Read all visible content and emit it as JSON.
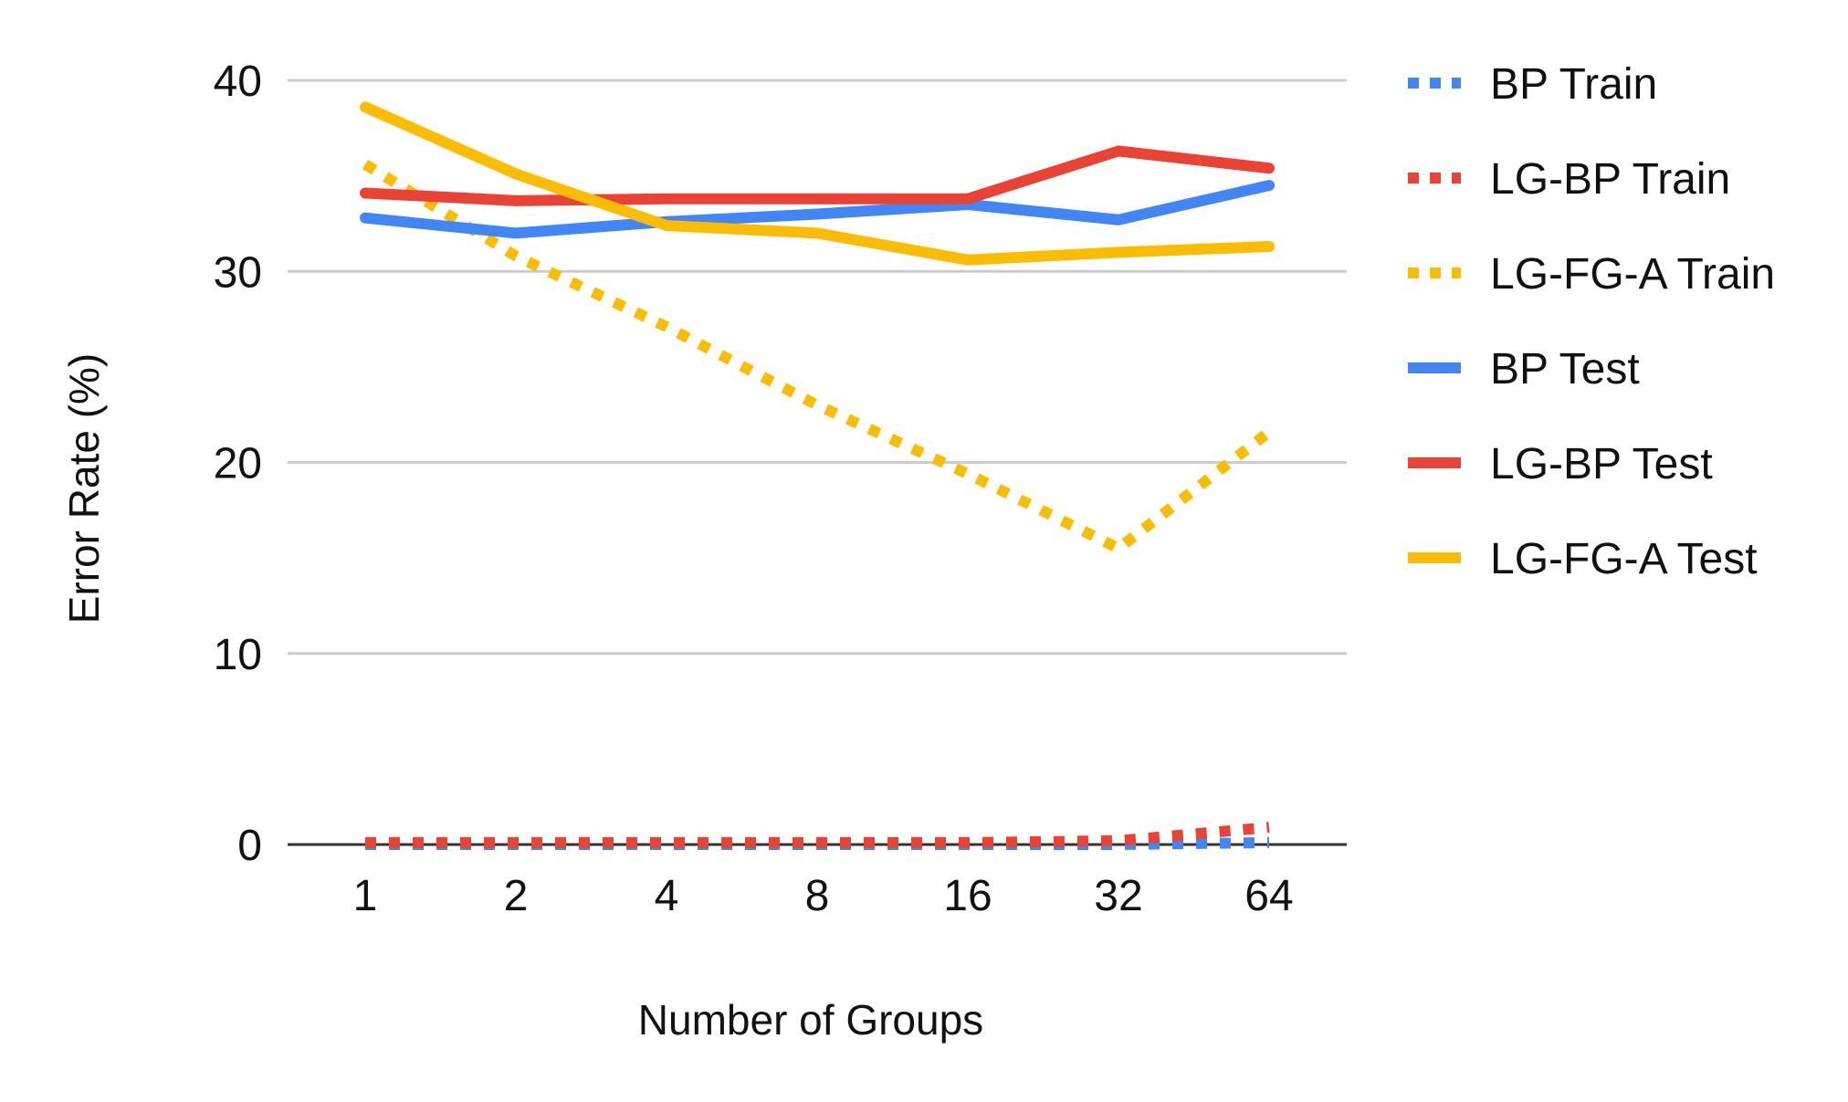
{
  "chart_data": {
    "type": "line",
    "title": "",
    "xlabel": "Number of Groups",
    "ylabel": "Error Rate (%)",
    "categories": [
      "1",
      "2",
      "4",
      "8",
      "16",
      "32",
      "64"
    ],
    "ylim": [
      0,
      40
    ],
    "yticks": [
      "0",
      "10",
      "20",
      "30",
      "40"
    ],
    "grid": "horizontal",
    "legend_position": "right",
    "series": [
      {
        "name": "BP Train",
        "style": "dotted",
        "color": "#4285F4",
        "values": [
          0,
          0,
          0,
          0,
          0,
          0,
          0.1
        ]
      },
      {
        "name": "LG-BP Train",
        "style": "dotted",
        "color": "#EA4335",
        "values": [
          0.1,
          0.1,
          0.1,
          0.1,
          0.1,
          0.2,
          0.9
        ]
      },
      {
        "name": "LG-FG-A Train",
        "style": "dotted",
        "color": "#FBBC04",
        "values": [
          35.6,
          30.8,
          27.1,
          23.0,
          19.4,
          15.5,
          21.6
        ]
      },
      {
        "name": "BP Test",
        "style": "solid",
        "color": "#4285F4",
        "values": [
          32.8,
          32.0,
          32.6,
          33.0,
          33.5,
          32.7,
          34.5
        ]
      },
      {
        "name": "LG-BP Test",
        "style": "solid",
        "color": "#EA4335",
        "values": [
          34.1,
          33.7,
          33.8,
          33.8,
          33.8,
          36.3,
          35.4
        ]
      },
      {
        "name": "LG-FG-A Test",
        "style": "solid",
        "color": "#FBBC04",
        "values": [
          38.6,
          35.1,
          32.4,
          32.0,
          30.6,
          31.0,
          31.3
        ]
      }
    ]
  }
}
